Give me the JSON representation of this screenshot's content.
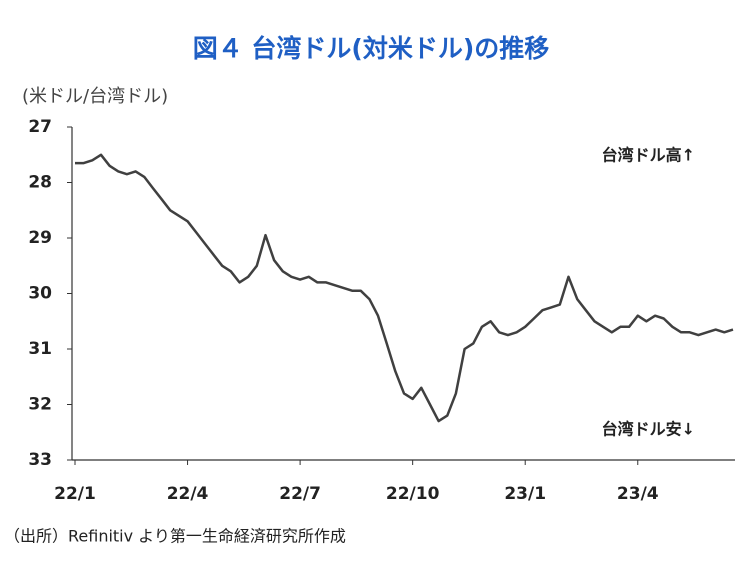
{
  "chart_data": {
    "type": "line",
    "title": "図４ 台湾ドル(対米ドル)の推移",
    "y_label": "(米ドル/台湾ドル)",
    "annotations": [
      "台湾ドル高↑",
      "台湾ドル安↓"
    ],
    "source": "（出所）Refinitiv より第一生命経済研究所作成",
    "categories": [
      "22/1",
      null,
      null,
      null,
      null,
      null,
      null,
      null,
      null,
      null,
      null,
      null,
      null,
      "22/4",
      null,
      null,
      null,
      null,
      null,
      null,
      null,
      null,
      null,
      null,
      null,
      null,
      "22/7",
      null,
      null,
      null,
      null,
      null,
      null,
      null,
      null,
      null,
      null,
      null,
      null,
      "22/10",
      null,
      null,
      null,
      null,
      null,
      null,
      null,
      null,
      null,
      null,
      null,
      null,
      "23/1",
      null,
      null,
      null,
      null,
      null,
      null,
      null,
      null,
      null,
      null,
      null,
      null,
      "23/4",
      null,
      null,
      null,
      null,
      null,
      null,
      null,
      null,
      null,
      null,
      null
    ],
    "series": [
      {
        "name": "台湾ドル",
        "color": "#404040",
        "values": [
          27.65,
          27.65,
          27.6,
          27.5,
          27.7,
          27.8,
          27.85,
          27.8,
          27.9,
          28.1,
          28.3,
          28.5,
          28.6,
          28.7,
          28.9,
          29.1,
          29.3,
          29.5,
          29.6,
          29.8,
          29.7,
          29.5,
          28.95,
          29.4,
          29.6,
          29.7,
          29.75,
          29.7,
          29.8,
          29.8,
          29.85,
          29.9,
          29.95,
          29.95,
          30.1,
          30.4,
          30.9,
          31.4,
          31.8,
          31.9,
          31.7,
          32.0,
          32.3,
          32.2,
          31.8,
          31.0,
          30.9,
          30.6,
          30.5,
          30.7,
          30.75,
          30.7,
          30.6,
          30.45,
          30.3,
          30.25,
          30.2,
          29.7,
          30.1,
          30.3,
          30.5,
          30.6,
          30.7,
          30.6,
          30.6,
          30.4,
          30.5,
          30.4,
          30.45,
          30.6,
          30.7,
          30.7,
          30.75,
          30.7,
          30.65,
          30.7,
          30.65
        ]
      }
    ],
    "ylim": [
      27,
      33
    ],
    "y_inverted": true,
    "yticks": [
      27,
      28,
      29,
      30,
      31,
      32,
      33
    ],
    "grid": false
  }
}
